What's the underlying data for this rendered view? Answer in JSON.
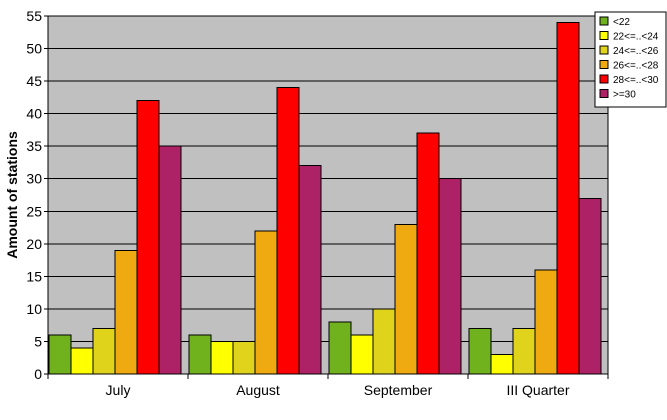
{
  "chart_data": {
    "type": "bar",
    "title": "",
    "xlabel": "",
    "ylabel": "Amount of stations",
    "ylim": [
      0,
      55
    ],
    "yticks": [
      0,
      5,
      10,
      15,
      20,
      25,
      30,
      35,
      40,
      45,
      50,
      55
    ],
    "grid": true,
    "legend_position": "top-right",
    "categories": [
      "July",
      "August",
      "September",
      "III Quarter"
    ],
    "series": [
      {
        "name": "<22",
        "color": "#6fb21e",
        "values": [
          6,
          6,
          8,
          7
        ]
      },
      {
        "name": "22<=..<24",
        "color": "#ffff00",
        "values": [
          4,
          5,
          6,
          3
        ]
      },
      {
        "name": "24<=..<26",
        "color": "#e0d31c",
        "values": [
          7,
          5,
          10,
          7
        ]
      },
      {
        "name": "26<=..<28",
        "color": "#eeaa10",
        "values": [
          19,
          22,
          23,
          16
        ]
      },
      {
        "name": "28<=..<30",
        "color": "#ff0000",
        "values": [
          42,
          44,
          37,
          54
        ]
      },
      {
        "name": ">=30",
        "color": "#ad2266",
        "values": [
          35,
          32,
          30,
          27
        ]
      }
    ],
    "colors": {
      "plot_background": "#c0c0c0",
      "gridline": "#000000"
    }
  }
}
